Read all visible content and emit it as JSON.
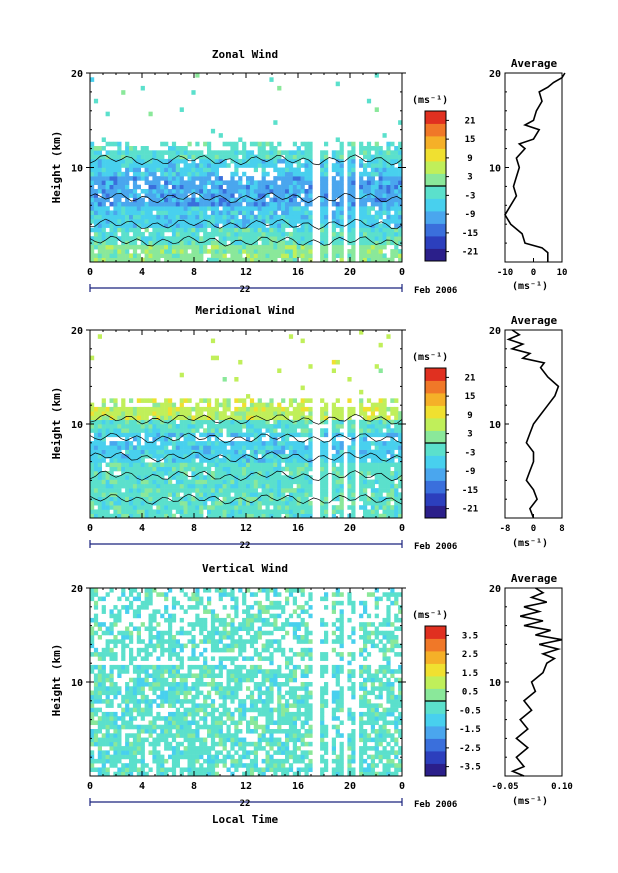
{
  "colorbar_scale": [
    "#2b1f8a",
    "#2c3fbd",
    "#3a6fdc",
    "#4aa6ee",
    "#48d0ee",
    "#5be0cc",
    "#8ae89a",
    "#c0ef5a",
    "#f0e030",
    "#f5b028",
    "#f07828",
    "#e03020"
  ],
  "chart_data": [
    {
      "type": "heatmap",
      "title": "Zonal Wind",
      "ylabel": "Height (km)",
      "ylim": [
        0,
        20
      ],
      "y_ticks": [
        "20",
        "10"
      ],
      "xlim": [
        0,
        24
      ],
      "x_ticks": [
        "0",
        "4",
        "8",
        "12",
        "16",
        "20",
        "0"
      ],
      "date_label": "22",
      "month_label": "Feb 2006",
      "unit": "(ms⁻¹)",
      "colorbar_ticks": [
        "21",
        "15",
        "9",
        "3",
        "-3",
        "-9",
        "-15",
        "-21"
      ],
      "colorbar_range": [
        -24,
        24
      ],
      "average": {
        "title": "Average",
        "xlim": [
          -10,
          10
        ],
        "x_ticks": [
          "-10",
          "0",
          "10"
        ],
        "y_ticks": [
          "20",
          "10"
        ],
        "xunit": "(ms⁻¹)",
        "profile": [
          [
            5,
            0
          ],
          [
            5,
            1
          ],
          [
            3,
            1.5
          ],
          [
            -3,
            2
          ],
          [
            -4,
            3
          ],
          [
            -8,
            4
          ],
          [
            -10,
            5
          ],
          [
            -8,
            6
          ],
          [
            -6,
            7
          ],
          [
            -7,
            8
          ],
          [
            -6,
            9
          ],
          [
            -5,
            10
          ],
          [
            -6,
            11
          ],
          [
            -3,
            12
          ],
          [
            -5,
            12.5
          ],
          [
            0,
            13
          ],
          [
            2,
            14
          ],
          [
            -3,
            14.5
          ],
          [
            0,
            15
          ],
          [
            1,
            16
          ],
          [
            3,
            17
          ],
          [
            2,
            18
          ],
          [
            5,
            18.5
          ],
          [
            7,
            19
          ],
          [
            10,
            19.5
          ],
          [
            11,
            20
          ]
        ]
      }
    },
    {
      "type": "heatmap",
      "title": "Meridional Wind",
      "ylabel": "Height (km)",
      "ylim": [
        0,
        20
      ],
      "y_ticks": [
        "20",
        "10"
      ],
      "xlim": [
        0,
        24
      ],
      "x_ticks": [
        "0",
        "4",
        "8",
        "12",
        "16",
        "20",
        "0"
      ],
      "date_label": "22",
      "month_label": "Feb 2006",
      "unit": "(ms⁻¹)",
      "colorbar_ticks": [
        "21",
        "15",
        "9",
        "3",
        "-3",
        "-9",
        "-15",
        "-21"
      ],
      "colorbar_range": [
        -24,
        24
      ],
      "average": {
        "title": "Average",
        "xlim": [
          -8,
          8
        ],
        "x_ticks": [
          "-8",
          "0",
          "8"
        ],
        "y_ticks": [
          "20",
          "10"
        ],
        "xunit": "(ms⁻¹)",
        "profile": [
          [
            0,
            0
          ],
          [
            -1,
            1
          ],
          [
            1,
            2
          ],
          [
            0,
            3
          ],
          [
            -2,
            4
          ],
          [
            -1,
            5
          ],
          [
            0,
            6
          ],
          [
            0,
            7
          ],
          [
            -2,
            8
          ],
          [
            -1,
            9
          ],
          [
            0,
            10
          ],
          [
            2,
            11
          ],
          [
            4,
            12
          ],
          [
            6,
            13
          ],
          [
            7,
            14
          ],
          [
            4,
            15
          ],
          [
            2,
            16
          ],
          [
            3,
            16.5
          ],
          [
            -3,
            17
          ],
          [
            -1,
            17.5
          ],
          [
            -6,
            18
          ],
          [
            -3,
            18.5
          ],
          [
            -7,
            19
          ],
          [
            -4,
            19.5
          ],
          [
            -6,
            20
          ]
        ]
      }
    },
    {
      "type": "heatmap",
      "title": "Vertical Wind",
      "ylabel": "Height (km)",
      "ylim": [
        0,
        20
      ],
      "y_ticks": [
        "20",
        "10"
      ],
      "xlim": [
        0,
        24
      ],
      "x_ticks": [
        "0",
        "4",
        "8",
        "12",
        "16",
        "20",
        "0"
      ],
      "date_label": "22",
      "month_label": "Feb 2006",
      "xlabel": "Local Time",
      "unit": "(ms⁻¹)",
      "colorbar_ticks": [
        "3.5",
        "2.5",
        "1.5",
        "0.5",
        "-0.5",
        "-1.5",
        "-2.5",
        "-3.5"
      ],
      "colorbar_range": [
        -4,
        4
      ],
      "average": {
        "title": "Average",
        "xlim": [
          -0.05,
          0.1
        ],
        "x_ticks": [
          "-0.05",
          "0.10"
        ],
        "y_ticks": [
          "20",
          "10"
        ],
        "xunit": "(ms⁻¹)",
        "profile": [
          [
            0.0,
            0
          ],
          [
            -0.03,
            0.5
          ],
          [
            0.0,
            1
          ],
          [
            -0.02,
            2
          ],
          [
            0.01,
            3
          ],
          [
            -0.02,
            4
          ],
          [
            0.01,
            5
          ],
          [
            -0.01,
            6
          ],
          [
            0.02,
            7
          ],
          [
            0.0,
            8
          ],
          [
            0.03,
            9
          ],
          [
            0.02,
            10
          ],
          [
            0.05,
            11
          ],
          [
            0.06,
            12
          ],
          [
            0.08,
            12.5
          ],
          [
            0.05,
            13
          ],
          [
            0.09,
            13.5
          ],
          [
            0.04,
            14
          ],
          [
            0.1,
            14.5
          ],
          [
            0.03,
            15
          ],
          [
            0.07,
            15.5
          ],
          [
            0.0,
            16
          ],
          [
            0.05,
            16.5
          ],
          [
            -0.01,
            17
          ],
          [
            0.04,
            17.5
          ],
          [
            0.0,
            18
          ],
          [
            0.06,
            18.5
          ],
          [
            0.02,
            19
          ],
          [
            0.05,
            19.5
          ],
          [
            0.03,
            20
          ]
        ]
      }
    }
  ]
}
